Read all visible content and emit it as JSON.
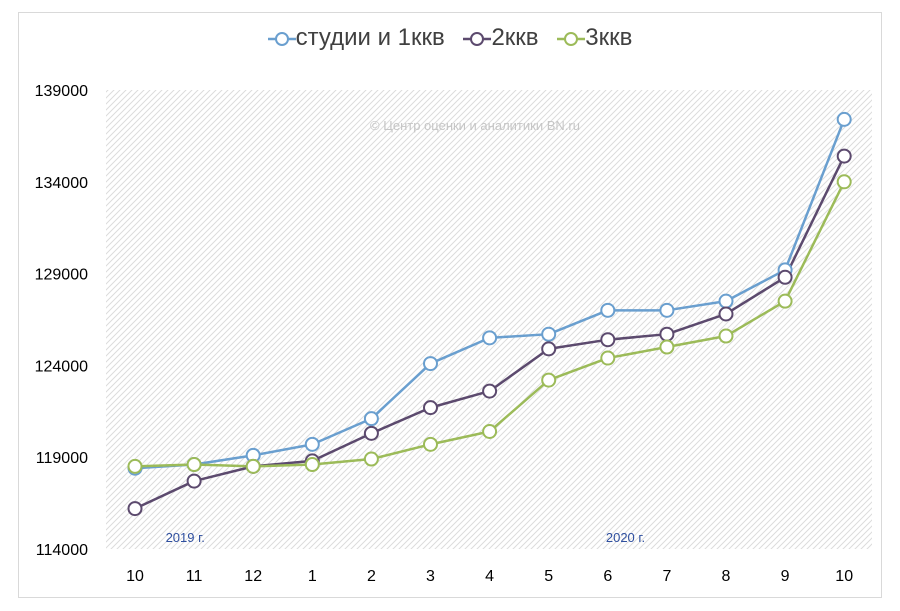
{
  "chart_data": {
    "type": "line",
    "title": "",
    "xlabel": "",
    "ylabel": "",
    "categories": [
      "10",
      "11",
      "12",
      "1",
      "2",
      "3",
      "4",
      "5",
      "6",
      "7",
      "8",
      "9",
      "10"
    ],
    "year_labels": [
      {
        "text": "2019 г.",
        "category_index": 0.85
      },
      {
        "text": "2020 г.",
        "category_index": 8.3
      }
    ],
    "watermark": "© Центр оценки и аналитики BN.ru",
    "ylim": [
      114000,
      139000
    ],
    "yticks": [
      114000,
      119000,
      124000,
      129000,
      134000,
      139000
    ],
    "grid": "diagonal-hatch",
    "legend_position": "top",
    "series": [
      {
        "name": "студии и 1ккв",
        "color": "#6a9fcf",
        "values": [
          118400,
          118600,
          119100,
          119700,
          121100,
          124100,
          125500,
          125700,
          127000,
          127000,
          127500,
          129200,
          137400
        ]
      },
      {
        "name": "2ккв",
        "color": "#5c4a6e",
        "values": [
          116200,
          117700,
          118500,
          118800,
          120300,
          121700,
          122600,
          124900,
          125400,
          125700,
          126800,
          128800,
          135400
        ]
      },
      {
        "name": "3ккв",
        "color": "#9cbb59",
        "values": [
          118500,
          118600,
          118500,
          118600,
          118900,
          119700,
          120400,
          123200,
          124400,
          125000,
          125600,
          127500,
          134000
        ]
      }
    ]
  }
}
